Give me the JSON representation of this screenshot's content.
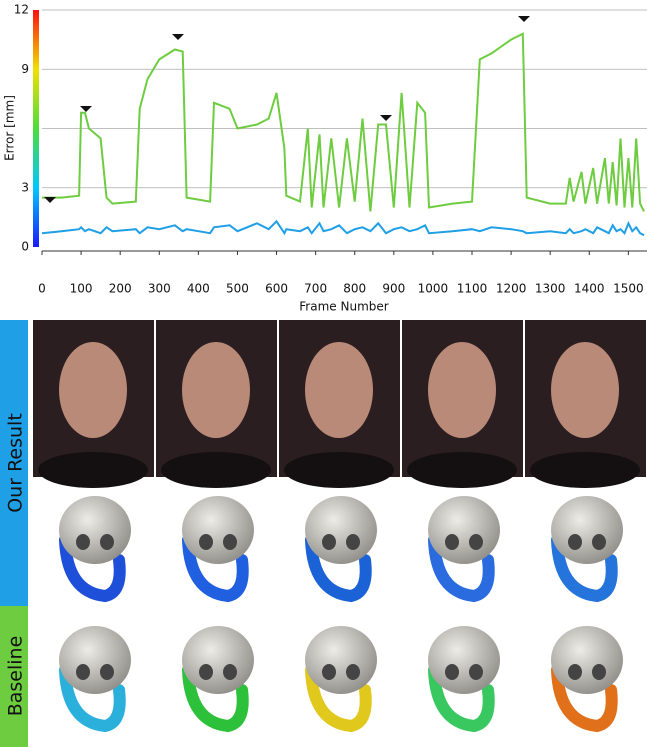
{
  "chart_data": {
    "type": "line",
    "x_label": "Frame Number",
    "y_label": "Error [mm]",
    "x": [
      0,
      50,
      95,
      100,
      110,
      120,
      150,
      165,
      180,
      240,
      250,
      270,
      300,
      340,
      360,
      370,
      430,
      440,
      480,
      500,
      550,
      580,
      600,
      620,
      625,
      660,
      680,
      690,
      710,
      720,
      740,
      760,
      780,
      800,
      820,
      840,
      860,
      880,
      900,
      920,
      940,
      960,
      980,
      990,
      1050,
      1100,
      1120,
      1150,
      1200,
      1230,
      1240,
      1300,
      1340,
      1350,
      1360,
      1380,
      1390,
      1410,
      1420,
      1440,
      1450,
      1460,
      1470,
      1480,
      1490,
      1500,
      1510,
      1520,
      1530,
      1540
    ],
    "series": [
      {
        "name": "Baseline",
        "color": "#6dcc3f",
        "values": [
          2.5,
          2.5,
          2.6,
          6.8,
          6.8,
          6.0,
          5.5,
          2.5,
          2.2,
          2.3,
          7.0,
          8.5,
          9.5,
          10.0,
          9.9,
          2.5,
          2.3,
          7.3,
          7.0,
          6.0,
          6.2,
          6.5,
          7.8,
          5.0,
          2.6,
          2.3,
          6.0,
          2.0,
          5.7,
          2.0,
          5.5,
          2.0,
          5.5,
          2.3,
          6.5,
          1.8,
          6.2,
          6.2,
          2.0,
          7.8,
          2.0,
          7.3,
          6.8,
          2.0,
          2.2,
          2.3,
          9.5,
          9.8,
          10.5,
          10.8,
          2.5,
          2.2,
          2.2,
          3.5,
          2.3,
          3.8,
          2.2,
          4.0,
          2.2,
          4.5,
          2.2,
          4.3,
          2.1,
          5.5,
          2.0,
          4.5,
          2.0,
          5.5,
          2.2,
          1.8
        ]
      },
      {
        "name": "Our Result",
        "color": "#1e9fe6",
        "values": [
          0.7,
          0.8,
          0.9,
          1.0,
          0.8,
          0.9,
          0.7,
          1.0,
          0.8,
          0.9,
          0.7,
          1.0,
          0.9,
          1.1,
          0.8,
          0.9,
          0.7,
          1.0,
          1.1,
          0.8,
          1.2,
          0.9,
          1.3,
          0.7,
          0.9,
          0.8,
          1.0,
          0.7,
          1.2,
          0.8,
          0.9,
          1.1,
          0.7,
          0.9,
          1.0,
          0.8,
          1.2,
          0.7,
          0.9,
          1.0,
          0.8,
          0.9,
          1.1,
          0.7,
          0.8,
          0.9,
          0.8,
          1.0,
          0.9,
          0.8,
          0.7,
          0.8,
          0.7,
          0.9,
          0.7,
          0.8,
          0.9,
          0.7,
          1.0,
          0.8,
          0.7,
          1.1,
          0.8,
          0.9,
          0.7,
          1.2,
          0.8,
          1.0,
          0.7,
          0.6
        ]
      }
    ],
    "xlim": [
      0,
      1540
    ],
    "ylim": [
      0,
      12
    ],
    "xticks": [
      0,
      100,
      200,
      300,
      400,
      500,
      600,
      700,
      800,
      900,
      1000,
      1100,
      1200,
      1300,
      1400,
      1500
    ],
    "yticks": [
      0,
      3,
      9,
      12
    ],
    "ygrid": [
      3,
      6,
      9,
      12
    ]
  },
  "panel_labels": [
    "Our Result",
    "Baseline"
  ]
}
